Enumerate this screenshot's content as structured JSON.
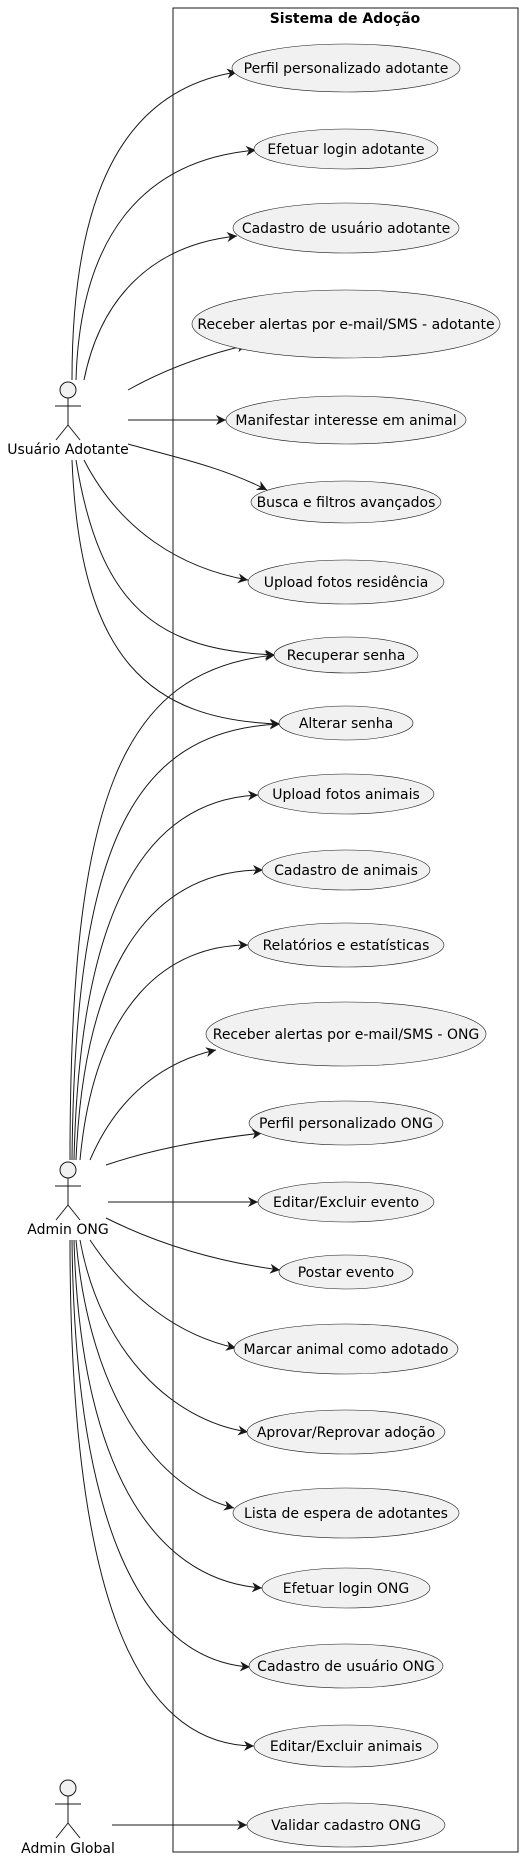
{
  "system": {
    "title": "Sistema de Adoção"
  },
  "actors": {
    "adotante": "Usuário Adotante",
    "ong": "Admin ONG",
    "global": "Admin Global"
  },
  "use_cases": {
    "perfil_adotante": "Perfil personalizado adotante",
    "login_adotante": "Efetuar login adotante",
    "cadastro_adotante": "Cadastro de usuário adotante",
    "alertas_adotante": "Receber alertas por e-mail/SMS - adotante",
    "manifestar_interesse": "Manifestar interesse em animal",
    "busca_filtros": "Busca e filtros avançados",
    "upload_residencia": "Upload fotos residência",
    "recuperar_senha": "Recuperar senha",
    "alterar_senha": "Alterar senha",
    "upload_animais": "Upload fotos animais",
    "cadastro_animais": "Cadastro de animais",
    "relatorios": "Relatórios e estatísticas",
    "alertas_ong": "Receber alertas por e-mail/SMS - ONG",
    "perfil_ong": "Perfil personalizado ONG",
    "editar_evento": "Editar/Excluir evento",
    "postar_evento": "Postar evento",
    "marcar_adotado": "Marcar animal como adotado",
    "aprovar_adocao": "Aprovar/Reprovar adoção",
    "lista_espera": "Lista de espera de adotantes",
    "login_ong": "Efetuar login ONG",
    "cadastro_ong": "Cadastro de usuário ONG",
    "editar_animais": "Editar/Excluir animais",
    "validar_ong": "Validar cadastro ONG"
  }
}
